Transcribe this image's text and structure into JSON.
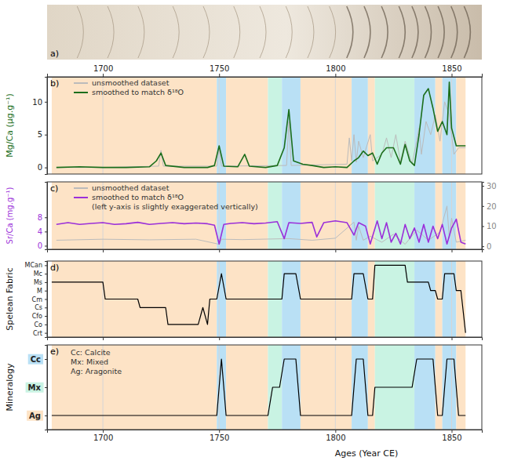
{
  "image": {
    "panel": "a)"
  },
  "shading": {
    "colors": {
      "Ag": "#fde3c6",
      "Mx": "#c9f3e3",
      "Cc": "#b9e0f5"
    },
    "intervals": [
      {
        "start": 1678,
        "end": 1749,
        "mineral": "Ag"
      },
      {
        "start": 1749,
        "end": 1753,
        "mineral": "Cc"
      },
      {
        "start": 1753,
        "end": 1771,
        "mineral": "Ag"
      },
      {
        "start": 1771,
        "end": 1777,
        "mineral": "Mx"
      },
      {
        "start": 1777,
        "end": 1785,
        "mineral": "Cc"
      },
      {
        "start": 1785,
        "end": 1807,
        "mineral": "Ag"
      },
      {
        "start": 1807,
        "end": 1814,
        "mineral": "Cc"
      },
      {
        "start": 1814,
        "end": 1817,
        "mineral": "Ag"
      },
      {
        "start": 1817,
        "end": 1834,
        "mineral": "Mx"
      },
      {
        "start": 1834,
        "end": 1843,
        "mineral": "Cc"
      },
      {
        "start": 1843,
        "end": 1846,
        "mineral": "Ag"
      },
      {
        "start": 1846,
        "end": 1852,
        "mineral": "Cc"
      },
      {
        "start": 1852,
        "end": 1856,
        "mineral": "Ag"
      }
    ]
  },
  "chart_data": [
    {
      "panel": "b)",
      "type": "line",
      "ylabel": "Mg/Ca (μg.g⁻¹)",
      "xlim": [
        1676,
        1863
      ],
      "xticks": [
        1700,
        1750,
        1800,
        1850
      ],
      "ylim": [
        -1,
        13.8
      ],
      "yticks": [
        0,
        5,
        10
      ],
      "grid": true,
      "legend": "upper left",
      "series": [
        {
          "name": "unsmoothed dataset",
          "color": "#bbbbbb",
          "x": [
            1680,
            1700,
            1724,
            1725,
            1726,
            1749,
            1750,
            1751,
            1779,
            1780,
            1781,
            1805,
            1806,
            1807,
            1808,
            1809,
            1810,
            1812,
            1815,
            1816,
            1820,
            1822,
            1824,
            1826,
            1828,
            1830,
            1833,
            1836,
            1837,
            1839,
            1841,
            1843,
            1845,
            1847,
            1849,
            1851,
            1853,
            1856
          ],
          "values": [
            0,
            0,
            0.2,
            2.6,
            0.2,
            0.2,
            3,
            0.2,
            0.3,
            7,
            0.3,
            0.5,
            4.5,
            1,
            5,
            0.8,
            4,
            1.5,
            5,
            1,
            2,
            4.5,
            1.5,
            5,
            0.8,
            4,
            0.5,
            6,
            2,
            7,
            5,
            8,
            4,
            10,
            8,
            2,
            3,
            3
          ]
        },
        {
          "name": "smoothed to match δ¹⁸O",
          "color": "#1b6e1b",
          "x": [
            1680,
            1690,
            1700,
            1710,
            1720,
            1723,
            1725,
            1727,
            1735,
            1745,
            1748,
            1750,
            1752,
            1758,
            1761,
            1763,
            1770,
            1775,
            1778,
            1780,
            1782,
            1786,
            1790,
            1795,
            1800,
            1805,
            1808,
            1810,
            1812,
            1814,
            1816,
            1818,
            1820,
            1822,
            1825,
            1828,
            1830,
            1832,
            1834,
            1836,
            1838,
            1840,
            1842,
            1844,
            1846,
            1848,
            1849,
            1850,
            1852,
            1854,
            1856
          ],
          "values": [
            0,
            0.1,
            0,
            0,
            0.1,
            1,
            2.2,
            0.3,
            0,
            0,
            0.3,
            3.3,
            0.2,
            0.1,
            2,
            0.2,
            0,
            0.3,
            3,
            8.8,
            1,
            0.5,
            0.3,
            0,
            0.1,
            0,
            1,
            1.5,
            2.5,
            1.8,
            2.2,
            0.5,
            2.2,
            3,
            3,
            0.5,
            3.5,
            1,
            0.3,
            5,
            11,
            12,
            9,
            5.5,
            7,
            5,
            13,
            6,
            3.3,
            3.3,
            3.3
          ]
        }
      ]
    },
    {
      "panel": "c)",
      "type": "line",
      "ylabel": "Sr/Ca (mg.g⁻¹)",
      "annotation": "(left y-axis is slightly exaggerated vertically)",
      "xlim": [
        1676,
        1863
      ],
      "xticks": [
        1700,
        1750,
        1800,
        1850
      ],
      "ylim": [
        -1,
        18
      ],
      "yticks": [
        0,
        4,
        8
      ],
      "y2lim": [
        -1.5,
        32
      ],
      "y2ticks": [
        0,
        10,
        20,
        30
      ],
      "grid": true,
      "legend": "upper left",
      "tick_labels": "y",
      "series": [
        {
          "name": "unsmoothed dataset",
          "color": "#bbbbbb",
          "axis": "y2",
          "x": [
            1680,
            1700,
            1720,
            1740,
            1750,
            1751,
            1760,
            1780,
            1790,
            1800,
            1808,
            1809,
            1810,
            1812,
            1815,
            1820,
            1825,
            1830,
            1835,
            1840,
            1845,
            1848,
            1849,
            1850,
            1852,
            1856
          ],
          "values": [
            3,
            3.5,
            3.2,
            3.5,
            1,
            3.5,
            3.3,
            3.8,
            3,
            4,
            12,
            3,
            10,
            3,
            5,
            2,
            6,
            1,
            8,
            3,
            7,
            20,
            4,
            14,
            2,
            3
          ]
        },
        {
          "name": "smoothed to match δ¹⁸O",
          "color": "#9b30d9",
          "x": [
            1680,
            1685,
            1690,
            1695,
            1700,
            1705,
            1710,
            1715,
            1720,
            1725,
            1730,
            1735,
            1740,
            1745,
            1748,
            1750,
            1752,
            1755,
            1760,
            1765,
            1770,
            1775,
            1778,
            1780,
            1785,
            1790,
            1792,
            1795,
            1800,
            1805,
            1808,
            1810,
            1813,
            1815,
            1818,
            1820,
            1822,
            1824,
            1826,
            1828,
            1830,
            1832,
            1834,
            1836,
            1838,
            1840,
            1842,
            1844,
            1846,
            1848,
            1850,
            1852,
            1854,
            1856
          ],
          "values": [
            6,
            6.5,
            6,
            6.3,
            6.5,
            6,
            6.2,
            6.6,
            6,
            6.3,
            6.5,
            6.2,
            6.4,
            6.2,
            5.8,
            0.5,
            6,
            6.3,
            6.5,
            6.2,
            6.4,
            6.8,
            2,
            6.5,
            6.3,
            6.6,
            2.5,
            6.5,
            7,
            6.5,
            3,
            6.5,
            5.5,
            0.5,
            7,
            2,
            6.5,
            1,
            3.5,
            0.5,
            6,
            2,
            5,
            1,
            6,
            1,
            5.5,
            2,
            6,
            0.5,
            5,
            7.5,
            1,
            0.5
          ]
        }
      ]
    },
    {
      "panel": "d)",
      "type": "line",
      "ylabel": "Spelean Fabric",
      "xlim": [
        1676,
        1863
      ],
      "xticks": [
        1700,
        1750,
        1800,
        1850
      ],
      "grid": true,
      "tick_labels": "y",
      "ycategories": [
        "Crt",
        "Co",
        "Cfo",
        "Cs",
        "Cm",
        "M",
        "Ms",
        "Mc",
        "MCan"
      ],
      "series": [
        {
          "color": "#000000",
          "x": [
            1678,
            1700,
            1701,
            1715,
            1716,
            1727,
            1728,
            1741,
            1743,
            1745,
            1746,
            1749,
            1751,
            1753,
            1777,
            1778,
            1783,
            1785,
            1807,
            1808,
            1812,
            1814,
            1816,
            1817,
            1830,
            1831,
            1840,
            1841,
            1843,
            1844,
            1846,
            1847,
            1851,
            1852,
            1854,
            1856
          ],
          "values": [
            "Ms",
            "Ms",
            "Cm",
            "Cm",
            "Cs",
            "Cs",
            "Co",
            "Co",
            "Cs",
            "Co",
            "Cm",
            "Cm",
            "Mc",
            "Cm",
            "Cm",
            "Mc",
            "Mc",
            "Cm",
            "Cm",
            "Mc",
            "Mc",
            "Cm",
            "Cm",
            "MCan",
            "MCan",
            "Ms",
            "Ms",
            "M",
            "M",
            "Cm",
            "Cm",
            "Mc",
            "Mc",
            "M",
            "M",
            "Crt"
          ]
        }
      ]
    },
    {
      "panel": "e)",
      "type": "line",
      "ylabel": "Mineralogy",
      "xlabel": "Ages (Year CE)",
      "xlim": [
        1676,
        1863
      ],
      "xticks": [
        1700,
        1750,
        1800,
        1850
      ],
      "grid": true,
      "ycategories": [
        "Ag",
        "Mx",
        "Cc"
      ],
      "annotations": [
        "Cc: Calcite",
        "Mx: Mixed",
        "Ag: Aragonite"
      ],
      "series": [
        {
          "color": "#000000",
          "x": [
            1678,
            1749,
            1751,
            1753,
            1771,
            1773,
            1776,
            1778,
            1783,
            1785,
            1807,
            1809,
            1812,
            1814,
            1816,
            1817,
            1833,
            1835,
            1842,
            1844,
            1846,
            1848,
            1851,
            1853,
            1856
          ],
          "values": [
            "Ag",
            "Ag",
            "Cc",
            "Ag",
            "Ag",
            "Mx",
            "Mx",
            "Cc",
            "Cc",
            "Ag",
            "Ag",
            "Cc",
            "Cc",
            "Ag",
            "Ag",
            "Mx",
            "Mx",
            "Cc",
            "Cc",
            "Ag",
            "Ag",
            "Cc",
            "Cc",
            "Ag",
            "Ag"
          ]
        }
      ]
    }
  ]
}
